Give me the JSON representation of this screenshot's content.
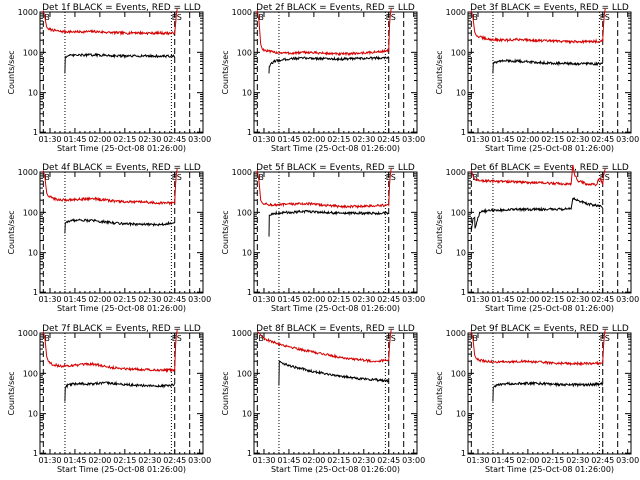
{
  "figure": {
    "xlabel": "Start Time (25-Oct-08 01:26:00)",
    "ylabel": "Counts/sec"
  },
  "colors": {
    "events": "#000000",
    "lld": "#d40000",
    "axes": "#000000"
  },
  "chart_data": [
    {
      "type": "line",
      "title": "Det 1f BLACK = Events, RED = LLD",
      "x_ticks": [
        "01:30",
        "01:45",
        "02:00",
        "02:15",
        "02:30",
        "02:45",
        "03:00"
      ],
      "y_ticks": [
        "1",
        "10",
        "100",
        "1000"
      ],
      "y_scale": "log",
      "ylim": [
        1,
        1000
      ],
      "xlim_min": [
        -2,
        96
      ],
      "markers": [
        "B",
        "ES"
      ],
      "series": [
        {
          "x": [
            0,
            1,
            2,
            3,
            5,
            10,
            20,
            30,
            40,
            50,
            55,
            60,
            70,
            79,
            79.5,
            80,
            80.5
          ],
          "values": [
            1100,
            700,
            420,
            380,
            360,
            330,
            320,
            330,
            310,
            300,
            310,
            300,
            300,
            300,
            500,
            900,
            1200
          ]
        },
        {
          "x": [
            13,
            13.2,
            15,
            20,
            30,
            40,
            50,
            60,
            70,
            79
          ],
          "values": [
            30,
            78,
            82,
            85,
            86,
            84,
            80,
            82,
            80,
            80
          ]
        }
      ]
    },
    {
      "type": "line",
      "title": "Det 2f BLACK = Events, RED = LLD",
      "x_ticks": [
        "01:30",
        "01:45",
        "02:00",
        "02:15",
        "02:30",
        "02:45",
        "03:00"
      ],
      "y_ticks": [
        "1",
        "10",
        "100",
        "1000"
      ],
      "y_scale": "log",
      "ylim": [
        1,
        1000
      ],
      "xlim_min": [
        -2,
        96
      ],
      "markers": [
        "B",
        "ES"
      ],
      "series": [
        {
          "x": [
            0,
            1,
            2,
            3,
            5,
            10,
            20,
            30,
            40,
            50,
            60,
            70,
            79,
            79.5,
            80,
            80.5
          ],
          "values": [
            1100,
            600,
            160,
            120,
            110,
            100,
            95,
            100,
            95,
            90,
            95,
            100,
            110,
            500,
            900,
            1200
          ]
        },
        {
          "x": [
            7,
            7.2,
            10,
            15,
            20,
            30,
            40,
            50,
            60,
            70,
            79
          ],
          "values": [
            30,
            45,
            60,
            65,
            70,
            72,
            70,
            68,
            70,
            72,
            75
          ]
        }
      ]
    },
    {
      "type": "line",
      "title": "Det 3f BLACK = Events, RED = LLD",
      "x_ticks": [
        "01:30",
        "01:45",
        "02:00",
        "02:15",
        "02:30",
        "02:45",
        "03:00"
      ],
      "y_ticks": [
        "1",
        "10",
        "100",
        "1000"
      ],
      "y_scale": "log",
      "ylim": [
        1,
        1000
      ],
      "xlim_min": [
        -2,
        96
      ],
      "markers": [
        "B",
        "ES"
      ],
      "series": [
        {
          "x": [
            0,
            1,
            2,
            3,
            5,
            10,
            20,
            30,
            40,
            50,
            60,
            70,
            79,
            79.5,
            80,
            80.5
          ],
          "values": [
            1100,
            700,
            320,
            260,
            240,
            210,
            200,
            210,
            195,
            190,
            185,
            185,
            190,
            500,
            900,
            1200
          ]
        },
        {
          "x": [
            13,
            13.2,
            15,
            20,
            30,
            40,
            50,
            60,
            70,
            79
          ],
          "values": [
            30,
            55,
            58,
            62,
            60,
            56,
            54,
            52,
            52,
            52
          ]
        }
      ]
    },
    {
      "type": "line",
      "title": "Det 4f BLACK = Events, RED = LLD",
      "x_ticks": [
        "01:30",
        "01:45",
        "02:00",
        "02:15",
        "02:30",
        "02:45",
        "03:00"
      ],
      "y_ticks": [
        "1",
        "10",
        "100",
        "1000"
      ],
      "y_scale": "log",
      "ylim": [
        1,
        1000
      ],
      "xlim_min": [
        -2,
        96
      ],
      "markers": [
        "B",
        "ES"
      ],
      "series": [
        {
          "x": [
            0,
            1,
            2,
            3,
            5,
            10,
            20,
            30,
            40,
            50,
            60,
            70,
            79,
            79.5,
            80,
            80.5
          ],
          "values": [
            1100,
            700,
            300,
            250,
            230,
            200,
            210,
            220,
            195,
            180,
            180,
            170,
            170,
            500,
            900,
            1200
          ]
        },
        {
          "x": [
            13,
            13.2,
            15,
            20,
            30,
            40,
            50,
            60,
            70,
            79
          ],
          "values": [
            30,
            55,
            60,
            65,
            62,
            56,
            52,
            50,
            50,
            55
          ]
        }
      ]
    },
    {
      "type": "line",
      "title": "Det 5f BLACK = Events, RED = LLD",
      "x_ticks": [
        "01:30",
        "01:45",
        "02:00",
        "02:15",
        "02:30",
        "02:45",
        "03:00"
      ],
      "y_ticks": [
        "1",
        "10",
        "100",
        "1000"
      ],
      "y_scale": "log",
      "ylim": [
        1,
        1000
      ],
      "xlim_min": [
        -2,
        96
      ],
      "markers": [
        "B",
        "ES"
      ],
      "series": [
        {
          "x": [
            0,
            1,
            2,
            3,
            5,
            10,
            20,
            30,
            40,
            50,
            60,
            70,
            79,
            79.5,
            80,
            80.5
          ],
          "values": [
            1100,
            600,
            200,
            170,
            160,
            150,
            160,
            165,
            150,
            140,
            140,
            145,
            150,
            500,
            900,
            1200
          ]
        },
        {
          "x": [
            7,
            7.2,
            10,
            20,
            30,
            40,
            50,
            60,
            70,
            79
          ],
          "values": [
            25,
            85,
            95,
            100,
            105,
            100,
            95,
            95,
            95,
            95
          ]
        }
      ]
    },
    {
      "type": "line",
      "title": "Det 6f BLACK = Events, RED = LLD",
      "x_ticks": [
        "01:30",
        "01:45",
        "02:00",
        "02:15",
        "02:30",
        "02:45",
        "03:00"
      ],
      "y_ticks": [
        "1",
        "10",
        "100",
        "1000"
      ],
      "y_scale": "log",
      "ylim": [
        1,
        1000
      ],
      "xlim_min": [
        -2,
        96
      ],
      "markers": [
        "B",
        "ES"
      ],
      "series": [
        {
          "x": [
            0,
            1,
            2,
            3,
            5,
            10,
            20,
            30,
            40,
            50,
            55,
            60,
            61,
            62,
            64,
            70,
            75,
            77,
            79,
            79.5,
            80,
            80.5
          ],
          "values": [
            1100,
            800,
            650,
            620,
            610,
            600,
            580,
            560,
            540,
            520,
            510,
            500,
            1500,
            900,
            600,
            500,
            480,
            700,
            500,
            800,
            1000,
            1200
          ]
        },
        {
          "x": [
            0,
            1,
            2,
            2.2,
            5,
            10,
            20,
            30,
            40,
            50,
            58,
            60,
            61,
            70,
            75,
            78,
            79
          ],
          "values": [
            35,
            70,
            75,
            40,
            100,
            110,
            115,
            118,
            118,
            120,
            120,
            120,
            220,
            160,
            150,
            140,
            130
          ]
        }
      ]
    },
    {
      "type": "line",
      "title": "Det 7f BLACK = Events, RED = LLD",
      "x_ticks": [
        "01:30",
        "01:45",
        "02:00",
        "02:15",
        "02:30",
        "02:45",
        "03:00"
      ],
      "y_ticks": [
        "1",
        "10",
        "100",
        "1000"
      ],
      "y_scale": "log",
      "ylim": [
        1,
        1000
      ],
      "xlim_min": [
        -2,
        96
      ],
      "markers": [
        "B",
        "ES"
      ],
      "series": [
        {
          "x": [
            0,
            1,
            2,
            3,
            5,
            10,
            20,
            30,
            40,
            50,
            60,
            70,
            79,
            79.5,
            80,
            80.5
          ],
          "values": [
            1100,
            700,
            260,
            200,
            170,
            150,
            160,
            170,
            140,
            130,
            125,
            120,
            120,
            500,
            900,
            1200
          ]
        },
        {
          "x": [
            13,
            13.2,
            15,
            20,
            30,
            40,
            50,
            60,
            70,
            79
          ],
          "values": [
            20,
            45,
            52,
            55,
            55,
            58,
            52,
            50,
            48,
            52
          ]
        }
      ]
    },
    {
      "type": "line",
      "title": "Det 8f BLACK = Events, RED = LLD",
      "x_ticks": [
        "01:30",
        "01:45",
        "02:00",
        "02:15",
        "02:30",
        "02:45",
        "03:00"
      ],
      "y_ticks": [
        "1",
        "10",
        "100",
        "1000"
      ],
      "y_scale": "log",
      "ylim": [
        1,
        1000
      ],
      "xlim_min": [
        -2,
        96
      ],
      "markers": [
        "B",
        "ES"
      ],
      "series": [
        {
          "x": [
            0,
            1,
            2,
            3,
            5,
            10,
            20,
            30,
            40,
            50,
            60,
            70,
            79,
            79.5,
            80,
            80.5
          ],
          "values": [
            1100,
            1000,
            900,
            800,
            700,
            580,
            450,
            360,
            300,
            250,
            220,
            200,
            210,
            500,
            900,
            1200
          ]
        },
        {
          "x": [
            13,
            13.2,
            15,
            20,
            30,
            40,
            50,
            60,
            70,
            79
          ],
          "values": [
            50,
            200,
            180,
            150,
            120,
            100,
            85,
            75,
            70,
            65
          ]
        }
      ]
    },
    {
      "type": "line",
      "title": "Det 9f BLACK = Events, RED = LLD",
      "x_ticks": [
        "01:30",
        "01:45",
        "02:00",
        "02:15",
        "02:30",
        "02:45",
        "03:00"
      ],
      "y_ticks": [
        "1",
        "10",
        "100",
        "1000"
      ],
      "y_scale": "log",
      "ylim": [
        1,
        1000
      ],
      "xlim_min": [
        -2,
        96
      ],
      "markers": [
        "B",
        "ES"
      ],
      "series": [
        {
          "x": [
            0,
            1,
            2,
            3,
            5,
            10,
            20,
            30,
            40,
            50,
            60,
            70,
            79,
            79.5,
            80,
            80.5
          ],
          "values": [
            1100,
            700,
            280,
            230,
            210,
            195,
            190,
            200,
            190,
            180,
            175,
            175,
            180,
            500,
            900,
            1200
          ]
        },
        {
          "x": [
            13,
            13.2,
            15,
            20,
            30,
            40,
            50,
            60,
            70,
            79
          ],
          "values": [
            20,
            45,
            50,
            55,
            57,
            56,
            53,
            52,
            52,
            55
          ]
        }
      ]
    }
  ]
}
